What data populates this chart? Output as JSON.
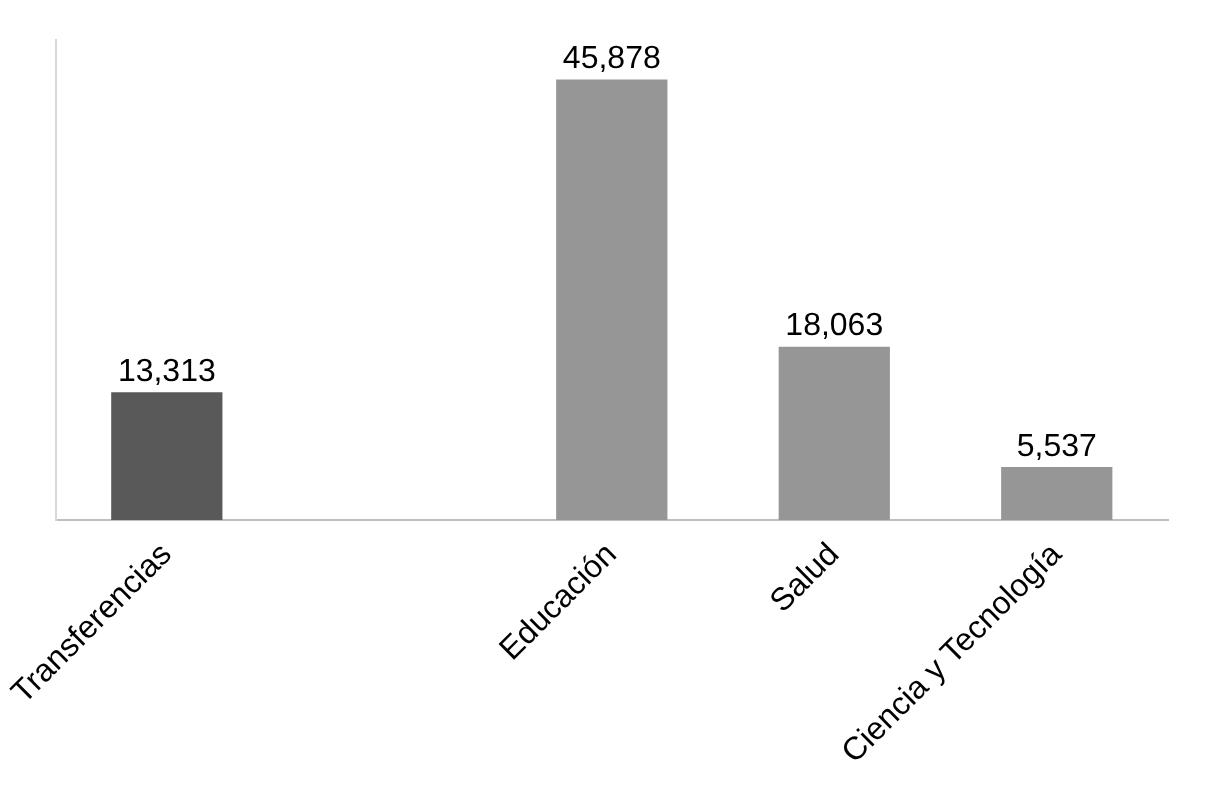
{
  "chart_data": {
    "type": "bar",
    "categories": [
      "Transferencias",
      null,
      "Educación",
      "Salud",
      "Ciencia y Tecnología"
    ],
    "values": [
      13313,
      null,
      45878,
      18063,
      5537
    ],
    "colors": [
      "#595959",
      "#969696",
      "#969696",
      "#969696",
      "#969696"
    ],
    "value_labels": [
      "13,313",
      null,
      "45,878",
      "18,063",
      "5,537"
    ],
    "tick_labels": "x",
    "grid": false,
    "legend": false
  }
}
